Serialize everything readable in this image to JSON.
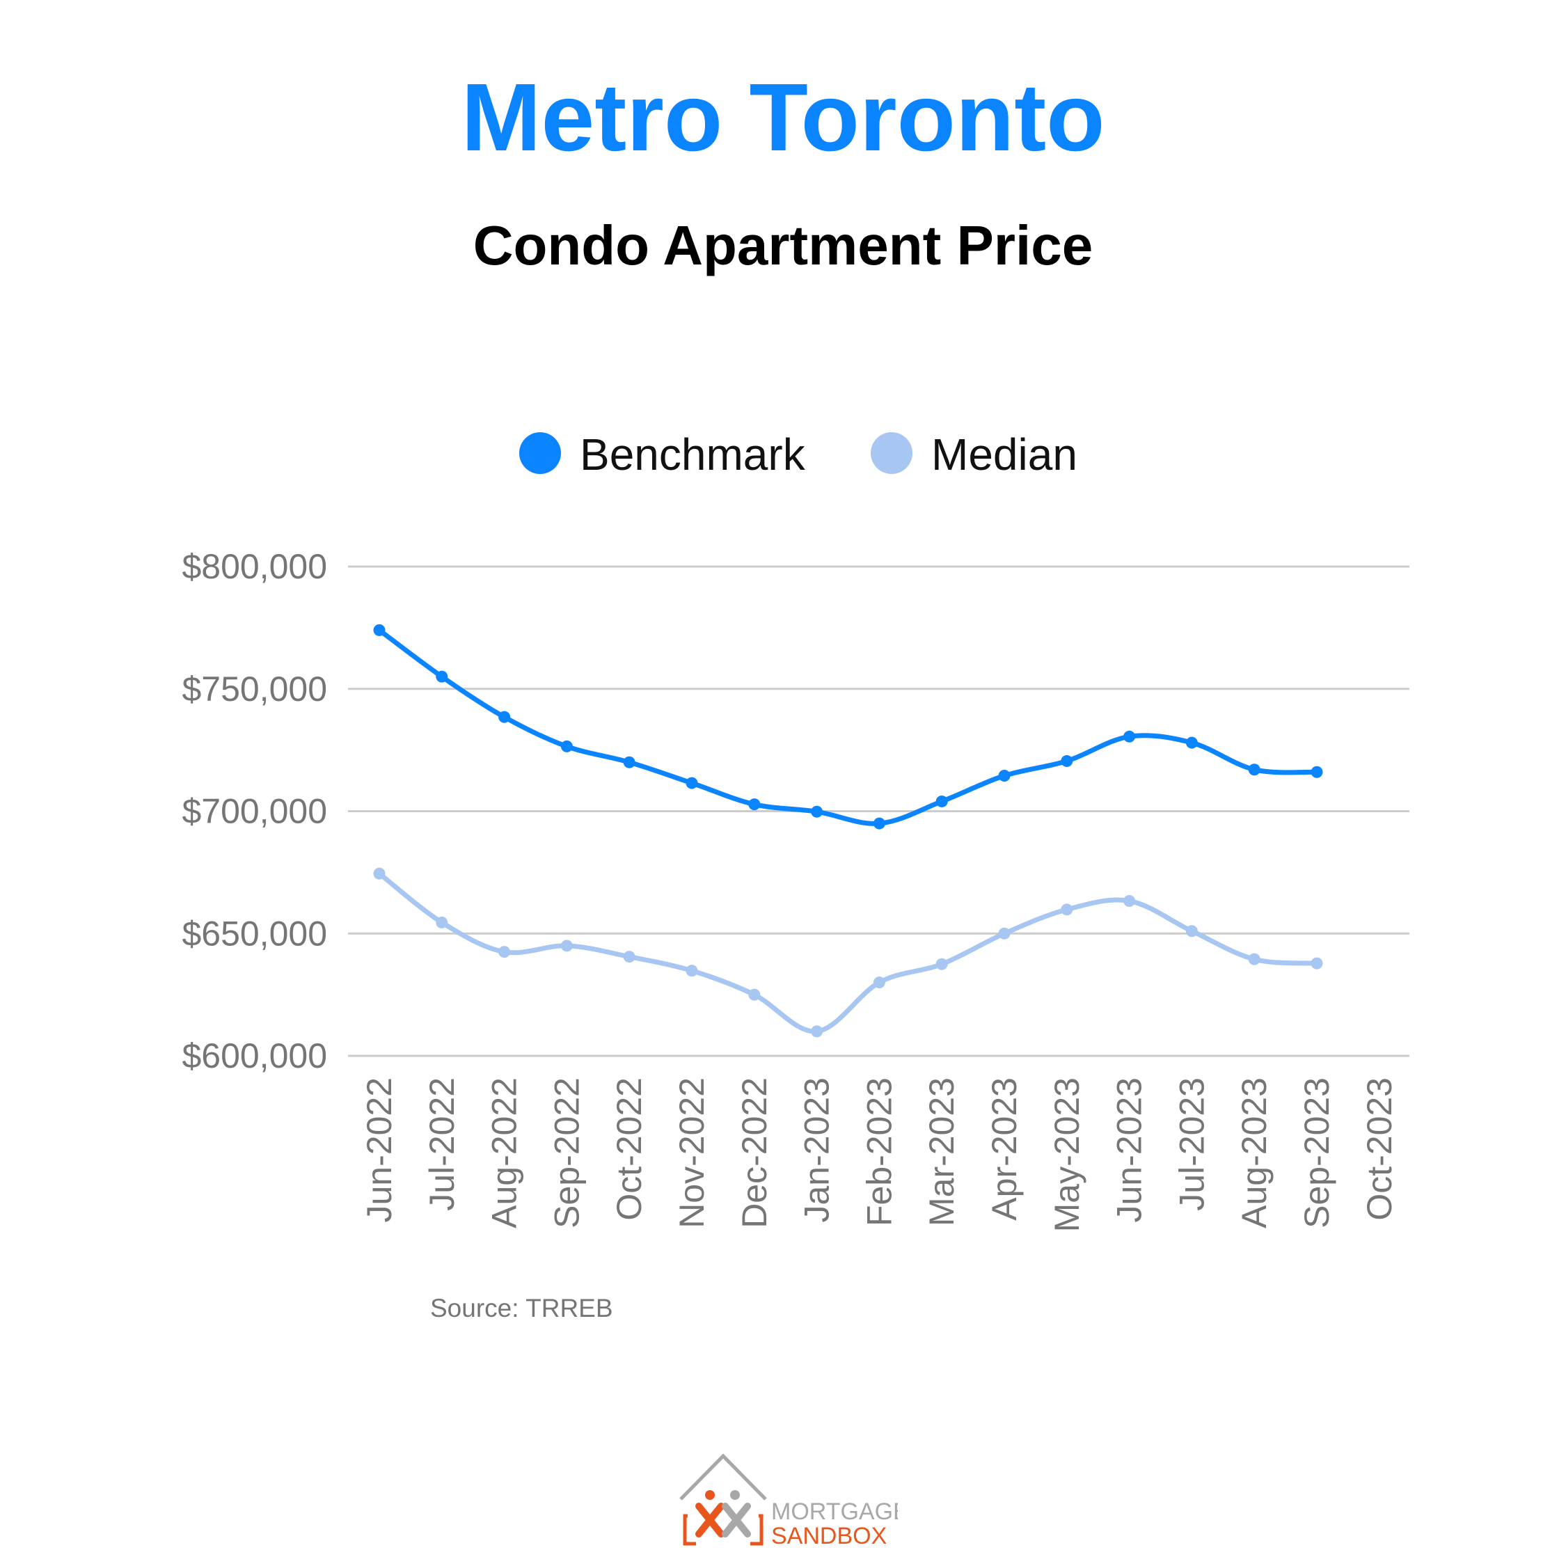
{
  "header": {
    "title": "Metro Toronto",
    "subtitle": "Condo Apartment Price"
  },
  "colors": {
    "title": "#0a84ff",
    "benchmark": "#0a84ff",
    "median": "#a8c6f2",
    "grid": "#cccccc",
    "axis_text": "#757575",
    "logo_orange": "#e8561e",
    "logo_gray": "#a8a8a8"
  },
  "chart_data": {
    "type": "line",
    "title": "",
    "xlabel": "",
    "ylabel": "",
    "ylim": [
      600000,
      800000
    ],
    "yticks": [
      600000,
      650000,
      700000,
      750000,
      800000
    ],
    "ytick_labels": [
      "$600,000",
      "$650,000",
      "$700,000",
      "$750,000",
      "$800,000"
    ],
    "grid": true,
    "legend": "top",
    "categories": [
      "Jun-2022",
      "Jul-2022",
      "Aug-2022",
      "Sep-2022",
      "Oct-2022",
      "Nov-2022",
      "Dec-2022",
      "Jan-2023",
      "Feb-2023",
      "Mar-2023",
      "Apr-2023",
      "May-2023",
      "Jun-2023",
      "Jul-2023",
      "Aug-2023",
      "Sep-2023",
      "Oct-2023"
    ],
    "series": [
      {
        "name": "Benchmark",
        "color": "#0a84ff",
        "values": [
          774000,
          755000,
          738500,
          726500,
          720000,
          711500,
          702800,
          699800,
          695000,
          704000,
          714500,
          720500,
          730500,
          728000,
          717000,
          716000,
          null
        ]
      },
      {
        "name": "Median",
        "color": "#a8c6f2",
        "values": [
          674500,
          654500,
          642500,
          645000,
          640500,
          634800,
          625000,
          610000,
          630000,
          637500,
          650000,
          659800,
          663300,
          651000,
          639500,
          637800,
          null
        ]
      }
    ]
  },
  "footer": {
    "source": "Source: TRREB"
  },
  "logo": {
    "line1": "MORTGAGE",
    "line2": "SANDBOX"
  }
}
